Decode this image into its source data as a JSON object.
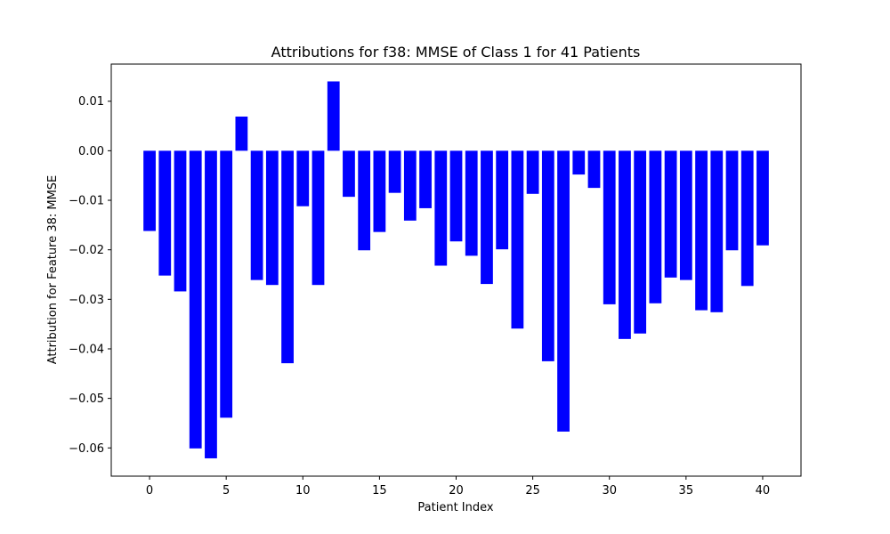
{
  "chart_data": {
    "type": "bar",
    "title": "Attributions for f38: MMSE of Class 1 for 41 Patients",
    "xlabel": "Patient Index",
    "ylabel": "Attribution for Feature 38: MMSE",
    "bar_color": "#0000ff",
    "x": [
      0,
      1,
      2,
      3,
      4,
      5,
      6,
      7,
      8,
      9,
      10,
      11,
      12,
      13,
      14,
      15,
      16,
      17,
      18,
      19,
      20,
      21,
      22,
      23,
      24,
      25,
      26,
      27,
      28,
      29,
      30,
      31,
      32,
      33,
      34,
      35,
      36,
      37,
      38,
      39,
      40
    ],
    "values": [
      -0.0162,
      -0.0252,
      -0.0284,
      -0.0601,
      -0.0621,
      -0.0539,
      0.0069,
      -0.0261,
      -0.0271,
      -0.0429,
      -0.0112,
      -0.0271,
      0.014,
      -0.0093,
      -0.0201,
      -0.0164,
      -0.0085,
      -0.0141,
      -0.0116,
      -0.0232,
      -0.0183,
      -0.0212,
      -0.0269,
      -0.0199,
      -0.0359,
      -0.0087,
      -0.0425,
      -0.0567,
      -0.0048,
      -0.0075,
      -0.031,
      -0.038,
      -0.0369,
      -0.0308,
      -0.0256,
      -0.0261,
      -0.0322,
      -0.0326,
      -0.0201,
      -0.0273,
      -0.0191
    ],
    "xlim": [
      -2.5,
      42.5
    ],
    "ylim": [
      -0.0657,
      0.0175
    ],
    "xticks": [
      0,
      5,
      10,
      15,
      20,
      25,
      30,
      35,
      40
    ],
    "xtick_labels": [
      "0",
      "5",
      "10",
      "15",
      "20",
      "25",
      "30",
      "35",
      "40"
    ],
    "yticks": [
      0.01,
      0.0,
      -0.01,
      -0.02,
      -0.03,
      -0.04,
      -0.05,
      -0.06
    ],
    "ytick_labels": [
      "0.01",
      "0.00",
      "−0.01",
      "−0.02",
      "−0.03",
      "−0.04",
      "−0.05",
      "−0.06"
    ],
    "grid": false,
    "legend": "none"
  }
}
